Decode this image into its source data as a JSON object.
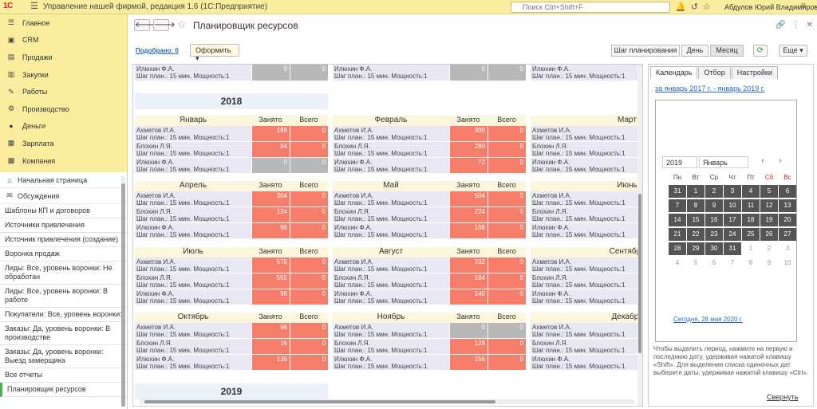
{
  "titlebar": {
    "logo": "1С",
    "app_title": "Управление нашей фирмой, редакция 1.6   (1С:Предприятие)",
    "search_placeholder": "Поиск Ctrl+Shift+F",
    "user_name": "Абдулов Юрий Владимирович"
  },
  "sidebar": {
    "items": [
      {
        "label": "Главное",
        "icon": "menu-icon"
      },
      {
        "label": "CRM",
        "icon": "crm-icon"
      },
      {
        "label": "Продажи",
        "icon": "sales-icon"
      },
      {
        "label": "Закупки",
        "icon": "cart-icon"
      },
      {
        "label": "Работы",
        "icon": "hammer-icon"
      },
      {
        "label": "Производство",
        "icon": "factory-icon"
      },
      {
        "label": "Деньги",
        "icon": "money-icon"
      },
      {
        "label": "Зарплата",
        "icon": "salary-icon"
      },
      {
        "label": "Компания",
        "icon": "company-icon"
      }
    ]
  },
  "nav_panel": {
    "home": "Начальная страница",
    "discussions": "Обсуждения",
    "links": [
      "Шаблоны КП и договоров",
      "Источники привлечения",
      "Источник привлечения (создание)",
      "Воронка продаж",
      "Лиды: Все, уровень воронки: Не обработан",
      "Лиды: Все, уровень воронки: В работе",
      "Покупатели: Все, уровень воронки:",
      "Заказы: Да, уровень воронки: В производстве",
      "Заказы: Да, уровень воронки: Выезд замерщика",
      "Все отчеты",
      "Планировщик ресурсов"
    ]
  },
  "header": {
    "title": "Планировщик ресурсов",
    "filter_link": "Подобрано: 0",
    "oform_label": "Оформить",
    "step_label": "Шаг планирования",
    "day_label": "День",
    "month_label": "Месяц",
    "more_label": "Еще"
  },
  "grid": {
    "col_busy": "Занято",
    "col_total": "Всего",
    "step_text": "Шаг план.: 15 мин. Мощность:1",
    "top_resource": "Илюхин Ф.А.",
    "top_values": [
      "0",
      "0"
    ],
    "year_2018": "2018",
    "year_2019": "2019",
    "months": [
      {
        "name": "Январь",
        "rows": [
          {
            "res": "Ахметов И.А.",
            "busy": "188",
            "total": "0",
            "state": "busy"
          },
          {
            "res": "Блохин Л.Я.",
            "busy": "84",
            "total": "0",
            "state": "busy"
          },
          {
            "res": "Илюхин Ф.А.",
            "busy": "0",
            "total": "0",
            "state": "free"
          }
        ]
      },
      {
        "name": "Февраль",
        "rows": [
          {
            "res": "Ахметов И.А.",
            "busy": "300",
            "total": "0",
            "state": "busy"
          },
          {
            "res": "Блохин Л.Я.",
            "busy": "280",
            "total": "0",
            "state": "busy"
          },
          {
            "res": "Илюхин Ф.А.",
            "busy": "72",
            "total": "0",
            "state": "busy"
          }
        ]
      },
      {
        "name": "Март",
        "rows": [
          {
            "res": "Ахметов И.А."
          },
          {
            "res": "Блохин Л.Я."
          },
          {
            "res": "Илюхин Ф.А."
          }
        ]
      },
      {
        "name": "Апрель",
        "rows": [
          {
            "res": "Ахметов И.А.",
            "busy": "304",
            "total": "0",
            "state": "busy"
          },
          {
            "res": "Блохин Л.Я.",
            "busy": "124",
            "total": "0",
            "state": "busy"
          },
          {
            "res": "Илюхин Ф.А.",
            "busy": "96",
            "total": "0",
            "state": "busy"
          }
        ]
      },
      {
        "name": "Май",
        "rows": [
          {
            "res": "Ахметов И.А.",
            "busy": "504",
            "total": "0",
            "state": "busy"
          },
          {
            "res": "Блохин Л.Я.",
            "busy": "224",
            "total": "0",
            "state": "busy"
          },
          {
            "res": "Илюхин Ф.А.",
            "busy": "108",
            "total": "0",
            "state": "busy"
          }
        ]
      },
      {
        "name": "Июнь",
        "rows": [
          {
            "res": "Ахметов И.А."
          },
          {
            "res": "Блохин Л.Я."
          },
          {
            "res": "Илюхин Ф.А."
          }
        ]
      },
      {
        "name": "Июль",
        "rows": [
          {
            "res": "Ахметов И.А.",
            "busy": "676",
            "total": "0",
            "state": "busy"
          },
          {
            "res": "Блохин Л.Я.",
            "busy": "555",
            "total": "0",
            "state": "busy"
          },
          {
            "res": "Илюхин Ф.А.",
            "busy": "96",
            "total": "0",
            "state": "busy"
          }
        ]
      },
      {
        "name": "Август",
        "rows": [
          {
            "res": "Ахметов И.А.",
            "busy": "332",
            "total": "0",
            "state": "busy"
          },
          {
            "res": "Блохин Л.Я.",
            "busy": "184",
            "total": "0",
            "state": "busy"
          },
          {
            "res": "Илюхин Ф.А.",
            "busy": "140",
            "total": "0",
            "state": "busy"
          }
        ]
      },
      {
        "name": "Сентябрь",
        "rows": [
          {
            "res": "Ахметов И.А."
          },
          {
            "res": "Блохин Л.Я."
          },
          {
            "res": "Илюхин Ф.А."
          }
        ]
      },
      {
        "name": "Октябрь",
        "rows": [
          {
            "res": "Ахметов И.А.",
            "busy": "96",
            "total": "0",
            "state": "busy"
          },
          {
            "res": "Блохин Л.Я.",
            "busy": "16",
            "total": "0",
            "state": "busy"
          },
          {
            "res": "Илюхин Ф.А.",
            "busy": "136",
            "total": "0",
            "state": "busy"
          }
        ]
      },
      {
        "name": "Ноябрь",
        "rows": [
          {
            "res": "Ахметов И.А.",
            "busy": "0",
            "total": "0",
            "state": "free"
          },
          {
            "res": "Блохин Л.Я.",
            "busy": "128",
            "total": "0",
            "state": "busy"
          },
          {
            "res": "Илюхин Ф.А.",
            "busy": "156",
            "total": "0",
            "state": "busy"
          }
        ]
      },
      {
        "name": "Декабрь",
        "rows": [
          {
            "res": "Ахметов И.А."
          },
          {
            "res": "Блохин Л.Я."
          },
          {
            "res": "Илюхин Ф.А."
          }
        ]
      }
    ]
  },
  "side_panel": {
    "tabs": [
      "Календарь",
      "Отбор",
      "Настройки"
    ],
    "period": "за январь 2017 г. - январь 2019 г.",
    "year": "2019",
    "month": "Январь",
    "weekdays": [
      "Пн",
      "Вт",
      "Ср",
      "Чт",
      "Пт",
      "Сб",
      "Вс"
    ],
    "days": [
      "31",
      "1",
      "2",
      "3",
      "4",
      "5",
      "6",
      "7",
      "8",
      "9",
      "10",
      "11",
      "12",
      "13",
      "14",
      "15",
      "16",
      "17",
      "18",
      "19",
      "20",
      "21",
      "22",
      "23",
      "24",
      "25",
      "26",
      "27",
      "28",
      "29",
      "30",
      "31",
      "1",
      "2",
      "3",
      "4",
      "5",
      "6",
      "7",
      "8",
      "9",
      "10"
    ],
    "today": "Сегодня, 28 мая 2020 г.",
    "hint": "Чтобы выделить период, нажмите на первую и последнюю дату, удерживая нажатой клавишу «Shift». Для выделения списка одиночных дат выберите даты, удерживая нажатой клавишу «Ctrl».",
    "collapse": "Свернуть"
  },
  "colors": {
    "busy": "#f77d6b",
    "free": "#b8b8b8",
    "accent": "#fbed9e"
  }
}
